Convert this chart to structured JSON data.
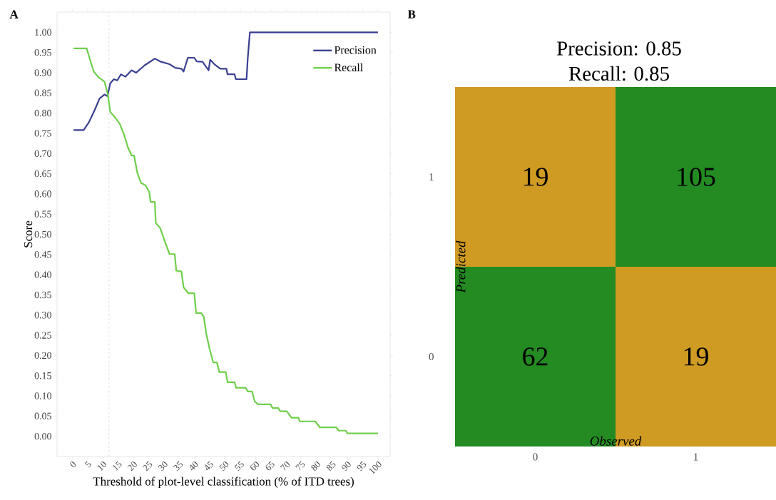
{
  "chart_data": [
    {
      "type": "line",
      "annotations": [
        "A"
      ],
      "xlabel": "Threshold of plot-level classification (% of ITD trees)",
      "ylabel": "Score",
      "xlim": [
        -5,
        104
      ],
      "ylim": [
        -0.05,
        1.05
      ],
      "xticks": [
        0,
        5,
        10,
        15,
        20,
        25,
        30,
        35,
        40,
        45,
        50,
        55,
        60,
        65,
        70,
        75,
        80,
        85,
        90,
        95,
        100
      ],
      "yticks": [
        {
          "value": 0,
          "label": "0.00"
        },
        {
          "value": 0.05,
          "label": "0.05"
        },
        {
          "value": 0.1,
          "label": "0.10"
        },
        {
          "value": 0.15,
          "label": "0.15"
        },
        {
          "value": 0.2,
          "label": "0.20"
        },
        {
          "value": 0.25,
          "label": "0.25"
        },
        {
          "value": 0.3,
          "label": "0.30"
        },
        {
          "value": 0.35,
          "label": "0.35"
        },
        {
          "value": 0.4,
          "label": "0.40"
        },
        {
          "value": 0.45,
          "label": "0.45"
        },
        {
          "value": 0.5,
          "label": "0.50"
        },
        {
          "value": 0.55,
          "label": "0.55"
        },
        {
          "value": 0.6,
          "label": "0.60"
        },
        {
          "value": 0.65,
          "label": "0.65"
        },
        {
          "value": 0.7,
          "label": "0.70"
        },
        {
          "value": 0.75,
          "label": "0.75"
        },
        {
          "value": 0.8,
          "label": "0.80"
        },
        {
          "value": 0.85,
          "label": "0.85"
        },
        {
          "value": 0.9,
          "label": "0.90"
        },
        {
          "value": 0.95,
          "label": "0.95"
        },
        {
          "value": 1,
          "label": "1.00"
        }
      ],
      "legend": "top right",
      "line_style": "solid",
      "ref_lines": [
        {
          "axis": "x",
          "value": 12,
          "color": "#d9d9d9",
          "line_style": "dashed"
        }
      ],
      "series": [
        {
          "name": "Precision",
          "color": "#3a4090",
          "x": [
            0.4,
            3.7,
            5.4,
            7.4,
            8.9,
            10.5,
            11.5,
            12.4,
            13.6,
            14.7,
            15.9,
            17.4,
            19.4,
            20.9,
            22.1,
            23.6,
            25.2,
            27,
            28.7,
            31.8,
            33.7,
            35.7,
            36.4,
            37.8,
            39.9,
            40.7,
            42.6,
            44.6,
            45.1,
            46.5,
            48.4,
            50.4,
            50.8,
            53.1,
            53.5,
            57,
            57.4,
            58.1,
            100
          ],
          "values": [
            0.758,
            0.758,
            0.777,
            0.809,
            0.836,
            0.846,
            0.842,
            0.874,
            0.884,
            0.881,
            0.896,
            0.89,
            0.906,
            0.9,
            0.908,
            0.918,
            0.926,
            0.935,
            0.928,
            0.921,
            0.912,
            0.91,
            0.903,
            0.937,
            0.937,
            0.928,
            0.927,
            0.906,
            0.932,
            0.921,
            0.91,
            0.91,
            0.896,
            0.896,
            0.884,
            0.884,
            0.935,
            1.0,
            1.0
          ]
        },
        {
          "name": "Recall",
          "color": "#6fcf4b",
          "x": [
            0.4,
            4.7,
            5.8,
            7,
            8.5,
            10.5,
            11.6,
            12.4,
            14,
            15.5,
            17,
            18.2,
            19.4,
            20.2,
            21.3,
            22.5,
            24,
            25.2,
            25.6,
            27,
            27.3,
            28.7,
            30.2,
            31.8,
            33.5,
            34,
            35.7,
            36.4,
            38,
            39.9,
            40.5,
            42.2,
            43,
            43.8,
            44.9,
            46.1,
            47.3,
            48.1,
            50.2,
            50.8,
            53.1,
            53.6,
            56.7,
            57.4,
            58.8,
            59.7,
            60.8,
            64.9,
            65.5,
            67.4,
            68,
            70.2,
            71.7,
            74,
            74.4,
            79.5,
            81,
            86.4,
            87.2,
            89.5,
            90,
            100
          ],
          "values": [
            0.96,
            0.96,
            0.932,
            0.903,
            0.889,
            0.878,
            0.847,
            0.803,
            0.789,
            0.774,
            0.745,
            0.715,
            0.695,
            0.695,
            0.651,
            0.627,
            0.621,
            0.604,
            0.58,
            0.58,
            0.528,
            0.516,
            0.484,
            0.451,
            0.451,
            0.41,
            0.408,
            0.369,
            0.354,
            0.354,
            0.305,
            0.305,
            0.296,
            0.255,
            0.217,
            0.183,
            0.183,
            0.159,
            0.159,
            0.134,
            0.134,
            0.12,
            0.12,
            0.111,
            0.111,
            0.086,
            0.079,
            0.079,
            0.07,
            0.07,
            0.062,
            0.062,
            0.046,
            0.046,
            0.037,
            0.037,
            0.022,
            0.022,
            0.014,
            0.014,
            0.007,
            0.007
          ]
        }
      ]
    },
    {
      "type": "heatmap",
      "annotations": [
        "B"
      ],
      "title": "Precision: 0.85",
      "subtitle": "Recall: 0.85",
      "xlabel": "Observed",
      "ylabel": "Predicted",
      "categories": [
        "0",
        "1"
      ],
      "y_categories": [
        "1",
        "0"
      ],
      "cells": [
        [
          19,
          105
        ],
        [
          62,
          19
        ]
      ],
      "colors": [
        "#cf9b22",
        "#238b22",
        "#238b22",
        "#cf9b22"
      ],
      "data_labels": true
    }
  ]
}
